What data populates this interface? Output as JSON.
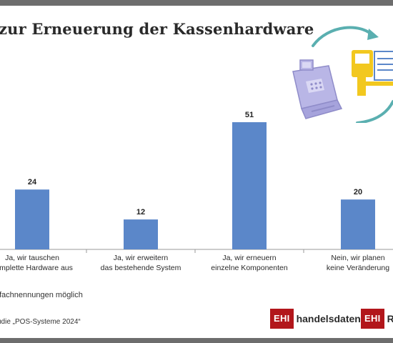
{
  "header": {
    "title": "zur Erneuerung der Kassenhardware"
  },
  "footer": {
    "footnote": "fachnennungen möglich",
    "source": "udie „POS-Systeme 2024“",
    "logo_left_badge": "EHI",
    "logo_left_text": "handelsdaten.de",
    "logo_right_badge": "EHI",
    "logo_right_text": "Ret"
  },
  "colors": {
    "bar": "#5b87c9",
    "frame": "#6d6d6d",
    "brand_red": "#b2161b",
    "illustration_teal": "#5aafb0",
    "illustration_lavender": "#b9b6e6",
    "illustration_yellow": "#f2c81f"
  },
  "icons": [
    "cash-register-icon",
    "cycle-arrows-icon",
    "pos-terminal-icon"
  ],
  "chart_data": {
    "type": "bar",
    "categories": [
      [
        "Ja, wir tauschen",
        "komplette Hardware aus"
      ],
      [
        "Ja, wir erweitern",
        "das bestehende System"
      ],
      [
        "Ja, wir erneuern",
        "einzelne Komponenten"
      ],
      [
        "Nein, wir planen",
        "keine Veränderung"
      ]
    ],
    "values": [
      24,
      12,
      51,
      20
    ],
    "data_labels": [
      "24",
      "12",
      "51",
      "20"
    ],
    "ylim": [
      0,
      51
    ],
    "grid": false,
    "legend": false
  }
}
